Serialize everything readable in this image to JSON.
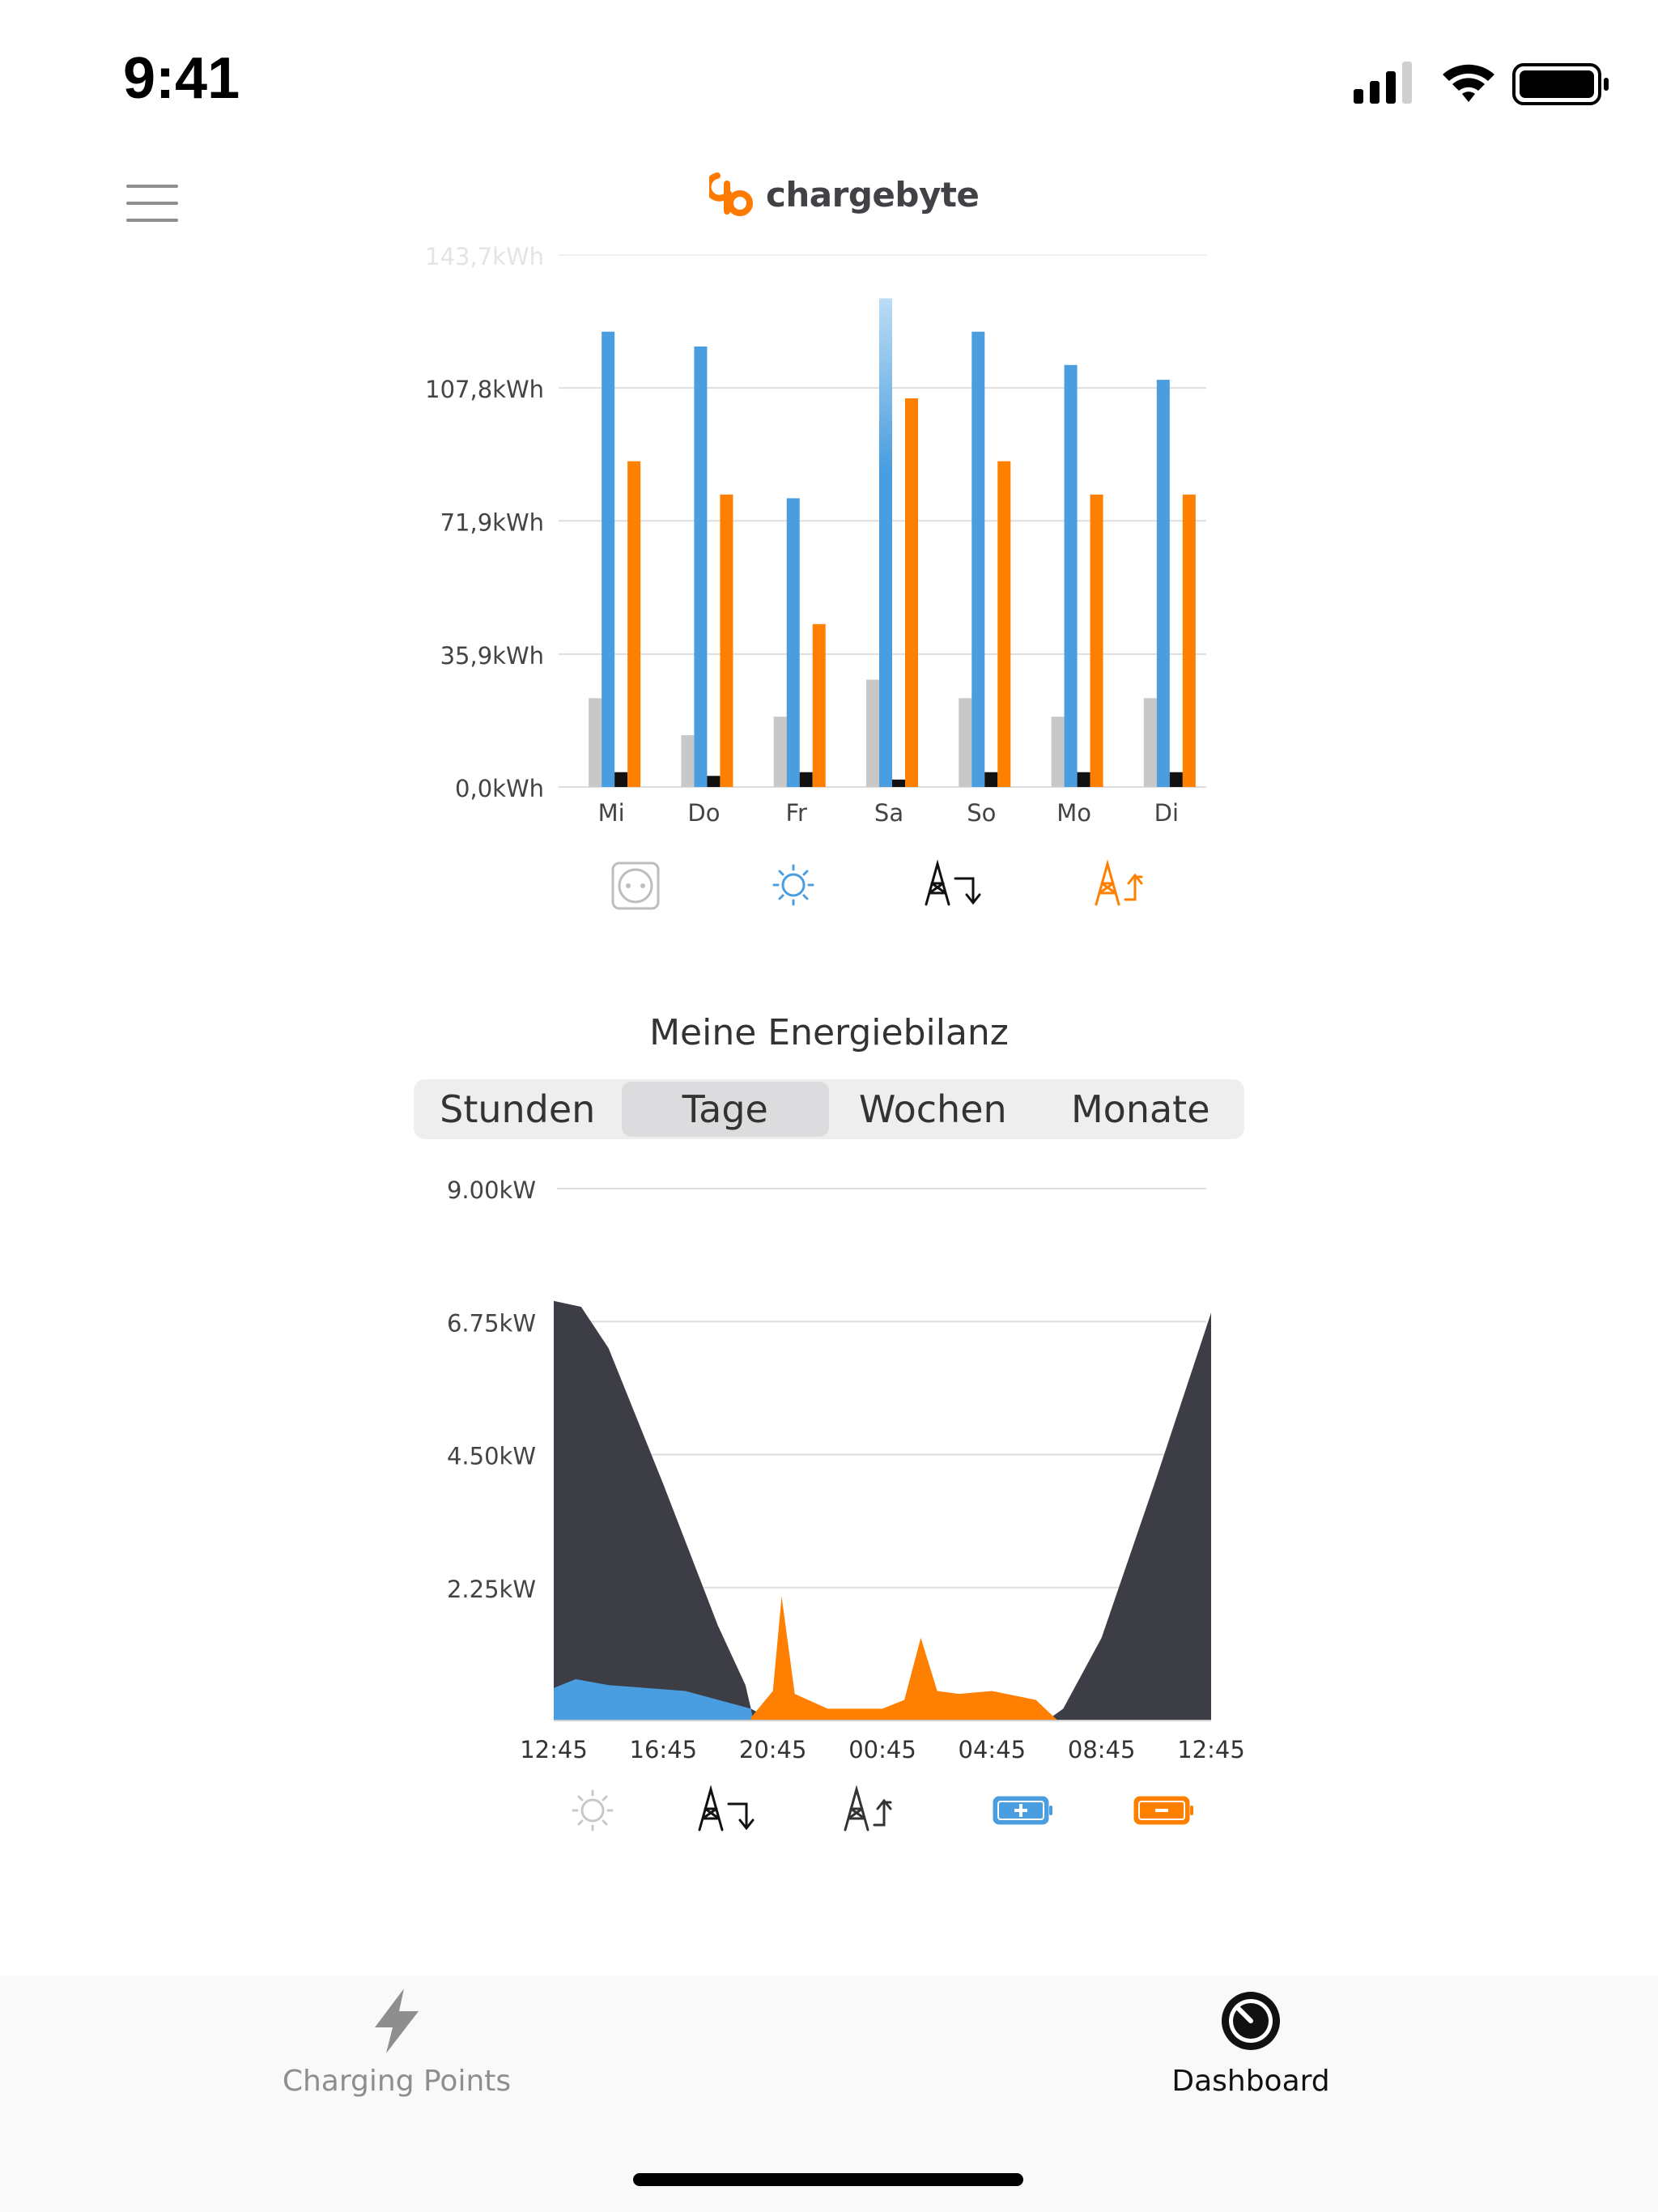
{
  "status_bar": {
    "time": "9:41",
    "icons": [
      "cellular-signal-icon",
      "wifi-icon",
      "battery-icon"
    ]
  },
  "header": {
    "brand": "chargebyte",
    "menu_icon": "hamburger-menu-icon"
  },
  "chart_daily": {
    "y_tick_labels": [
      "143,7kWh",
      "107,8kWh",
      "71,9kWh",
      "35,9kWh",
      "0,0kWh"
    ],
    "legend_icons": [
      "outlet-icon",
      "sun-icon",
      "grid-import-icon",
      "grid-export-icon"
    ]
  },
  "energy_balance": {
    "title": "Meine Energiebilanz",
    "segments": [
      "Stunden",
      "Tage",
      "Wochen",
      "Monate"
    ],
    "selected_segment": "Tage",
    "y_tick_labels": [
      "9.00kW",
      "6.75kW",
      "4.50kW",
      "2.25kW"
    ],
    "legend_icons": [
      "sun-icon",
      "grid-import-icon",
      "grid-export-icon",
      "battery-charge-icon",
      "battery-discharge-icon"
    ]
  },
  "chart_data": [
    {
      "type": "bar",
      "categories": [
        "Mi",
        "Do",
        "Fr",
        "Sa",
        "So",
        "Mo",
        "Di"
      ],
      "series": [
        {
          "values": [
            24,
            14,
            19,
            29,
            24,
            19,
            24
          ]
        },
        {
          "values": [
            123,
            119,
            78,
            132,
            123,
            114,
            110
          ]
        },
        {
          "values": [
            4,
            3,
            4,
            2,
            4,
            4,
            4
          ]
        },
        {
          "values": [
            88,
            79,
            44,
            105,
            88,
            79,
            79
          ]
        }
      ],
      "colors": [
        "#c8c8c8",
        "#4a9ee0",
        "#111111",
        "#ff8000"
      ],
      "ylim": [
        0,
        143.7
      ],
      "grid": true
    },
    {
      "type": "area",
      "x_tick_labels": [
        "12:45",
        "16:45",
        "20:45",
        "00:45",
        "04:45",
        "08:45",
        "12:45"
      ],
      "ylim": [
        0,
        9.0
      ],
      "grid": true,
      "series": [
        {
          "color": "#3d3d45",
          "points": [
            [
              0,
              7.1
            ],
            [
              0.25,
              7.0
            ],
            [
              0.5,
              6.3
            ],
            [
              1.0,
              4.0
            ],
            [
              1.5,
              1.6
            ],
            [
              1.75,
              0.6
            ],
            [
              1.8,
              0.2
            ],
            [
              2.0,
              0
            ],
            [
              4.5,
              0
            ],
            [
              4.65,
              0.2
            ],
            [
              5.0,
              1.4
            ],
            [
              5.5,
              4.1
            ],
            [
              6.0,
              6.9
            ]
          ]
        },
        {
          "color": "#4a9ee0",
          "points": [
            [
              0,
              0.55
            ],
            [
              0.2,
              0.7
            ],
            [
              0.5,
              0.6
            ],
            [
              1.2,
              0.5
            ],
            [
              1.8,
              0.2
            ],
            [
              1.82,
              0
            ]
          ]
        },
        {
          "color": "#ff8000",
          "points": [
            [
              1.8,
              0.05
            ],
            [
              2.0,
              0.5
            ],
            [
              2.08,
              2.1
            ],
            [
              2.2,
              0.45
            ],
            [
              2.5,
              0.2
            ],
            [
              3.0,
              0.2
            ],
            [
              3.2,
              0.35
            ],
            [
              3.35,
              1.4
            ],
            [
              3.5,
              0.5
            ],
            [
              3.7,
              0.45
            ],
            [
              4.0,
              0.5
            ],
            [
              4.4,
              0.35
            ],
            [
              4.6,
              0.0
            ]
          ]
        }
      ]
    }
  ],
  "tab_bar": {
    "items": [
      {
        "label": "Charging Points",
        "icon": "lightning-bolt-icon",
        "active": false
      },
      {
        "label": "Dashboard",
        "icon": "speedometer-icon",
        "active": true
      }
    ]
  }
}
